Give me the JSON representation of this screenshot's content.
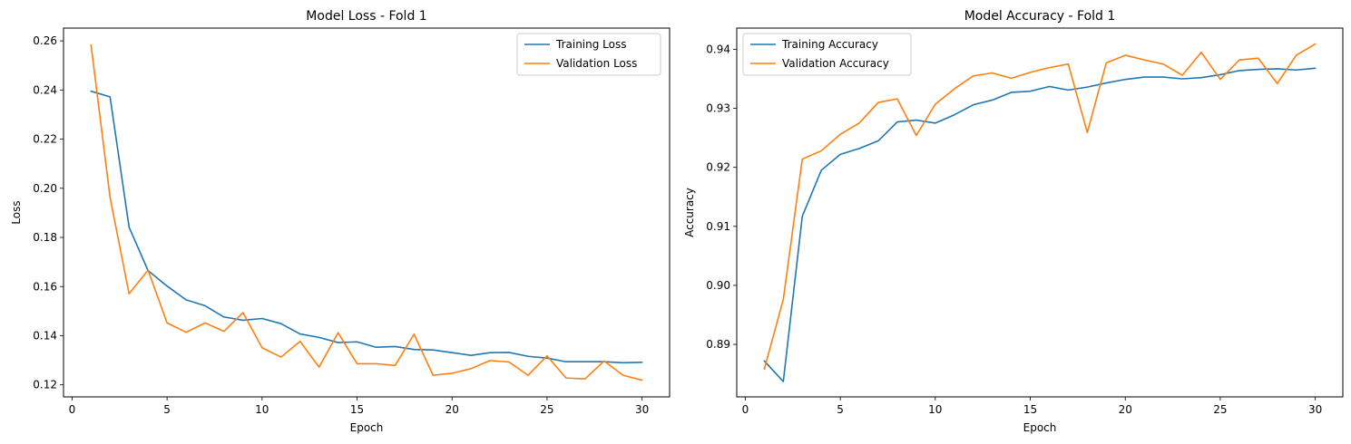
{
  "chart_data": [
    {
      "type": "line",
      "title": "Model Loss - Fold 1",
      "xlabel": "Epoch",
      "ylabel": "Loss",
      "xlim": [
        -0.45,
        31.45
      ],
      "ylim": [
        0.1151,
        0.2652
      ],
      "xticks": [
        0,
        5,
        10,
        15,
        20,
        25,
        30
      ],
      "yticks": [
        0.12,
        0.14,
        0.16,
        0.18,
        0.2,
        0.22,
        0.24,
        0.26
      ],
      "ytick_labels": [
        "0.12",
        "0.14",
        "0.16",
        "0.18",
        "0.20",
        "0.22",
        "0.24",
        "0.26"
      ],
      "grid": false,
      "legend": "top-right",
      "x": [
        1,
        2,
        3,
        4,
        5,
        6,
        7,
        8,
        9,
        10,
        11,
        12,
        13,
        14,
        15,
        16,
        17,
        18,
        19,
        20,
        21,
        22,
        23,
        24,
        25,
        26,
        27,
        28,
        29,
        30
      ],
      "series": [
        {
          "name": "Training Loss",
          "color": "#1f77b4",
          "values": [
            0.2395,
            0.2372,
            0.1842,
            0.1665,
            0.1602,
            0.1546,
            0.1522,
            0.1476,
            0.1463,
            0.147,
            0.1449,
            0.1407,
            0.1393,
            0.1372,
            0.1375,
            0.1353,
            0.1356,
            0.1344,
            0.1342,
            0.1331,
            0.132,
            0.1331,
            0.1332,
            0.1316,
            0.1309,
            0.1294,
            0.1294,
            0.1294,
            0.129,
            0.1292
          ]
        },
        {
          "name": "Validation Loss",
          "color": "#ff7f0e",
          "values": [
            0.2583,
            0.1963,
            0.1571,
            0.1667,
            0.1452,
            0.1414,
            0.1452,
            0.1418,
            0.1494,
            0.1351,
            0.1313,
            0.1377,
            0.1272,
            0.1412,
            0.1286,
            0.1286,
            0.1279,
            0.1406,
            0.1239,
            0.1247,
            0.1266,
            0.1299,
            0.1293,
            0.1239,
            0.1318,
            0.1228,
            0.1224,
            0.1297,
            0.1239,
            0.1219
          ]
        }
      ]
    },
    {
      "type": "line",
      "title": "Model Accuracy - Fold 1",
      "xlabel": "Epoch",
      "ylabel": "Accuracy",
      "xlim": [
        -0.45,
        31.45
      ],
      "ylim": [
        0.8811,
        0.9436
      ],
      "xticks": [
        0,
        5,
        10,
        15,
        20,
        25,
        30
      ],
      "yticks": [
        0.89,
        0.9,
        0.91,
        0.92,
        0.93,
        0.94
      ],
      "ytick_labels": [
        "0.89",
        "0.90",
        "0.91",
        "0.92",
        "0.93",
        "0.94"
      ],
      "grid": false,
      "legend": "top-left",
      "x": [
        1,
        2,
        3,
        4,
        5,
        6,
        7,
        8,
        9,
        10,
        11,
        12,
        13,
        14,
        15,
        16,
        17,
        18,
        19,
        20,
        21,
        22,
        23,
        24,
        25,
        26,
        27,
        28,
        29,
        30
      ],
      "series": [
        {
          "name": "Training Accuracy",
          "color": "#1f77b4",
          "values": [
            0.8872,
            0.8837,
            0.9117,
            0.9195,
            0.9222,
            0.9232,
            0.9245,
            0.9277,
            0.928,
            0.9275,
            0.9289,
            0.9306,
            0.9314,
            0.9327,
            0.9329,
            0.9337,
            0.9331,
            0.9336,
            0.9343,
            0.9349,
            0.9353,
            0.9353,
            0.935,
            0.9352,
            0.9357,
            0.9364,
            0.9366,
            0.9367,
            0.9365,
            0.9368
          ]
        },
        {
          "name": "Validation Accuracy",
          "color": "#ff7f0e",
          "values": [
            0.8858,
            0.8976,
            0.9214,
            0.9228,
            0.9256,
            0.9275,
            0.931,
            0.9316,
            0.9254,
            0.9307,
            0.9333,
            0.9355,
            0.936,
            0.9351,
            0.9361,
            0.9369,
            0.9375,
            0.9259,
            0.9377,
            0.939,
            0.9382,
            0.9375,
            0.9356,
            0.9395,
            0.9349,
            0.9382,
            0.9385,
            0.9342,
            0.939,
            0.9409
          ]
        }
      ]
    }
  ]
}
